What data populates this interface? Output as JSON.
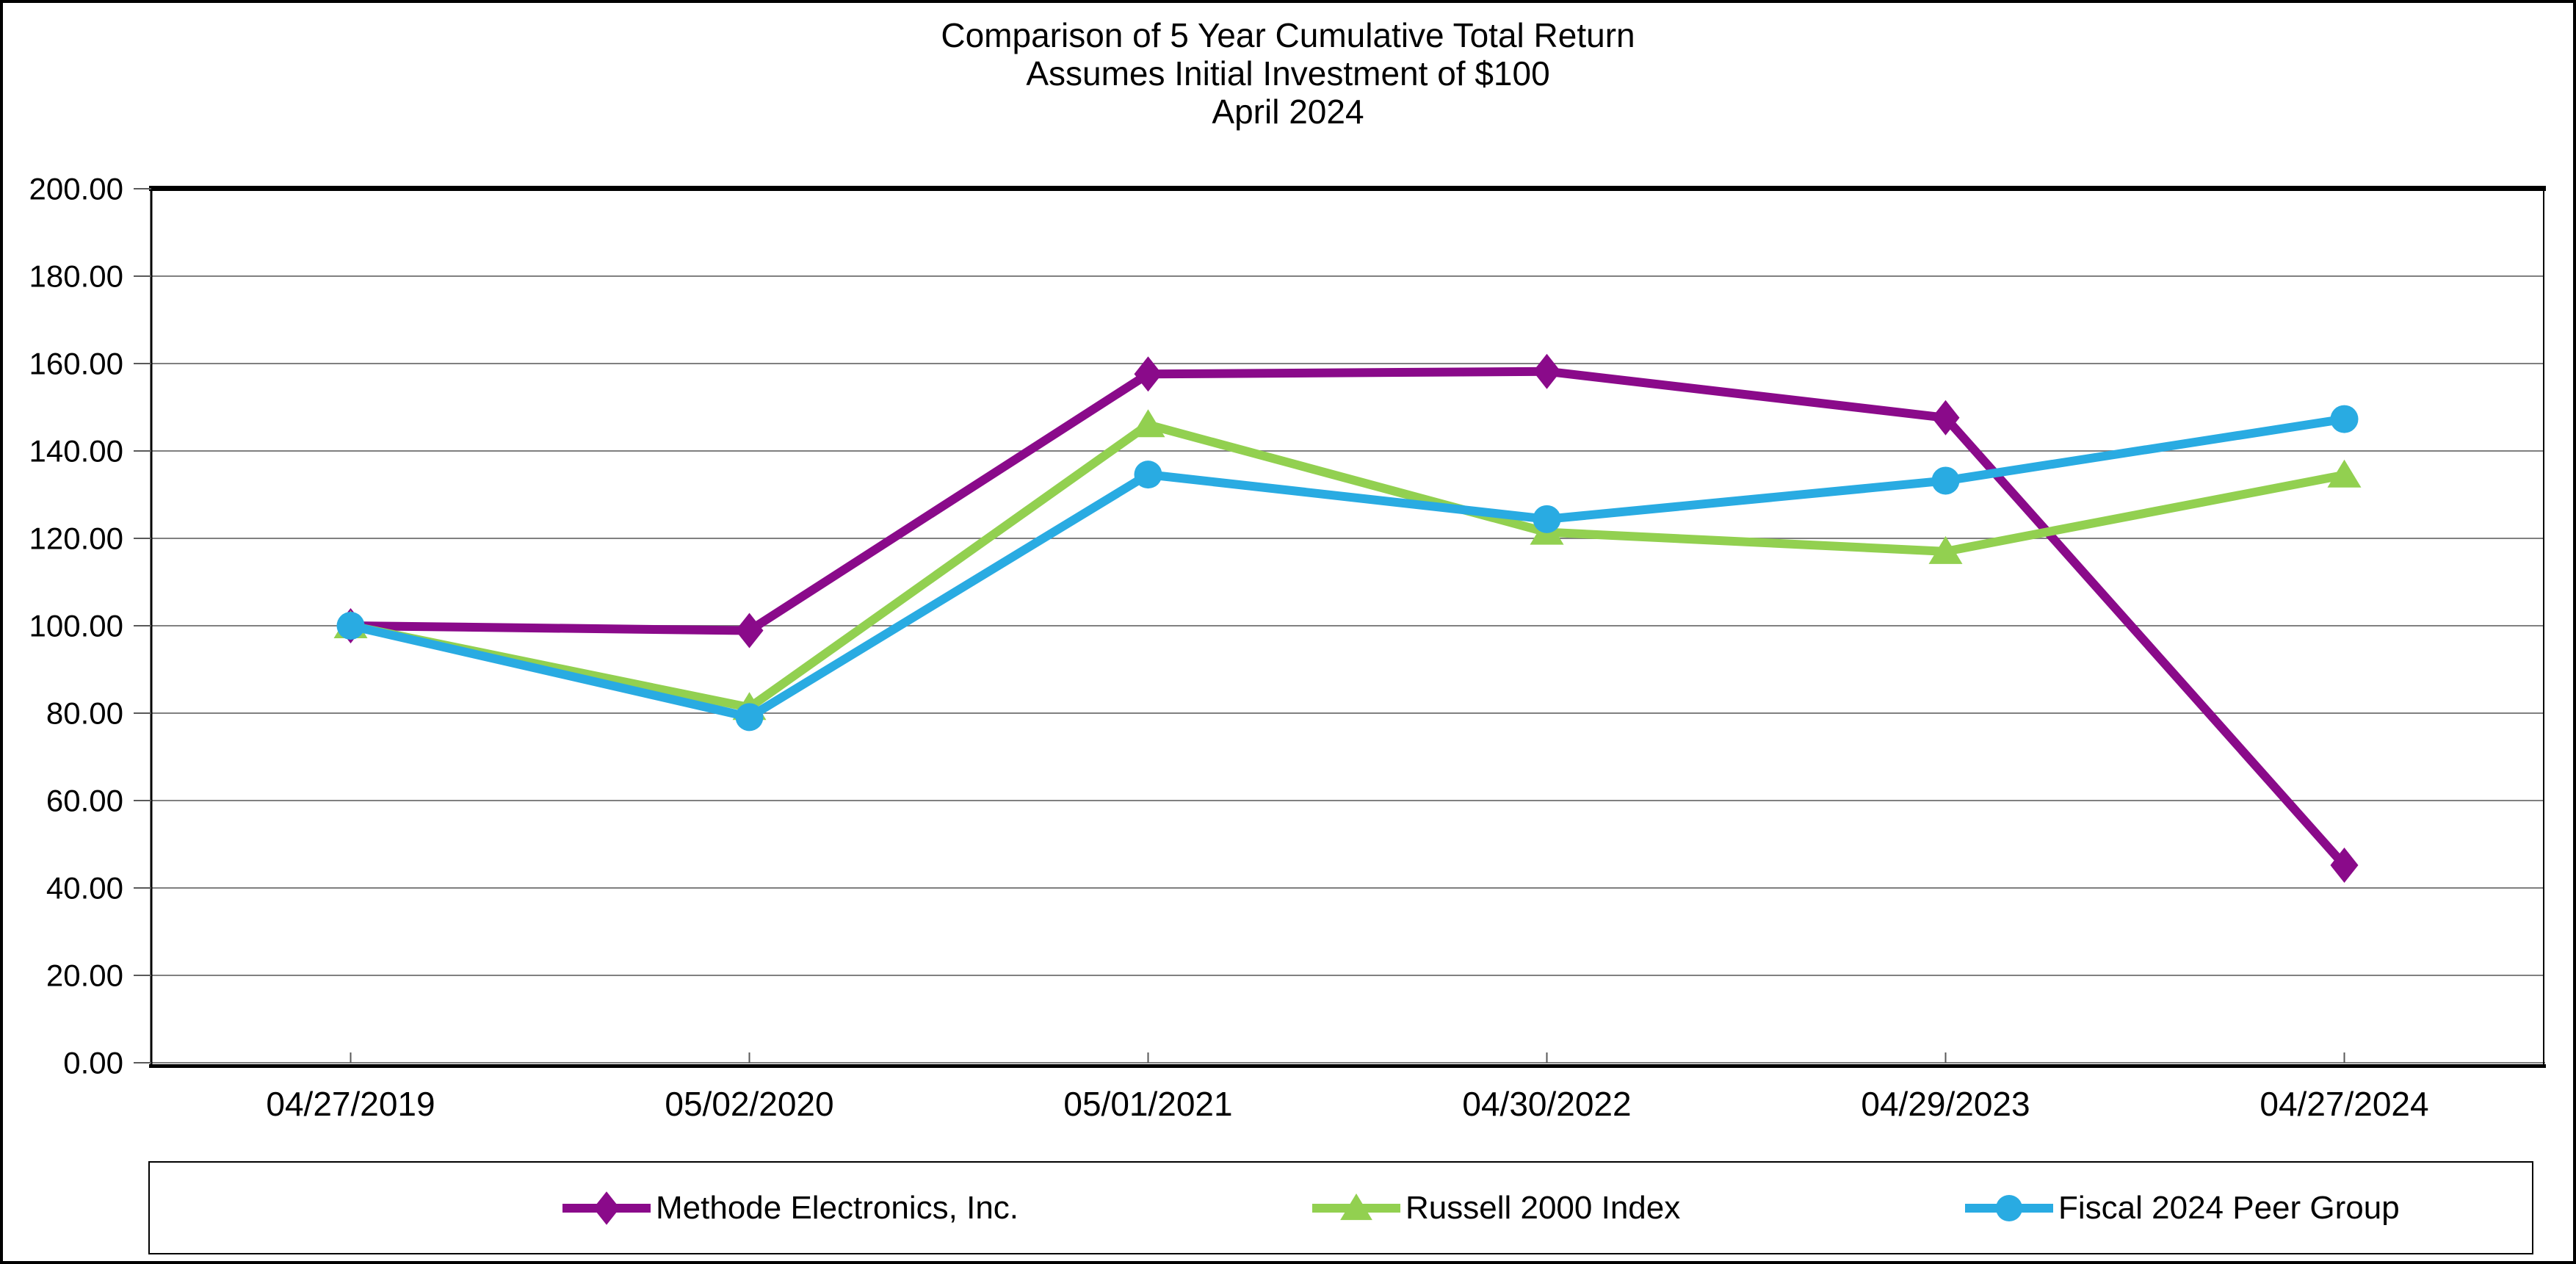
{
  "title": {
    "lines": [
      "Comparison of 5 Year Cumulative Total Return",
      "Assumes Initial Investment of $100",
      "April 2024"
    ]
  },
  "chart_data": {
    "type": "line",
    "x": [
      "04/27/2019",
      "05/02/2020",
      "05/01/2021",
      "04/30/2022",
      "04/29/2023",
      "04/27/2024"
    ],
    "series": [
      {
        "name": "Methode Electronics, Inc.",
        "marker": "diamond",
        "color": "#8A0A8A",
        "values": [
          100.0,
          98.9,
          157.6,
          158.2,
          147.6,
          45.2
        ]
      },
      {
        "name": "Russell 2000 Index",
        "marker": "triangle",
        "color": "#92D050",
        "values": [
          100.0,
          81.3,
          146.0,
          121.4,
          117.0,
          134.5
        ]
      },
      {
        "name": "Fiscal 2024 Peer Group",
        "marker": "circle",
        "color": "#29ABE2",
        "values": [
          100.0,
          79.1,
          134.6,
          124.4,
          133.2,
          147.3
        ]
      }
    ],
    "ylim": [
      0,
      200
    ],
    "ytick_step": 20,
    "ytick_labels": [
      "0.00",
      "20.00",
      "40.00",
      "60.00",
      "80.00",
      "100.00",
      "120.00",
      "140.00",
      "160.00",
      "180.00",
      "200.00"
    ],
    "grid": true,
    "gridline_color": "#808080",
    "axis_color": "#000000",
    "tick_color": "#595959",
    "legend_position": "bottom"
  }
}
